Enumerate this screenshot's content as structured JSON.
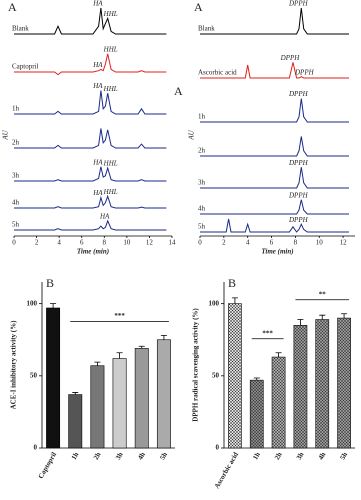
{
  "chart_data": [
    {
      "type": "line",
      "panel_label": "A",
      "annotations": [
        "A"
      ],
      "x_label": "Time (min)",
      "y_label": "AU",
      "xlim": [
        0,
        14
      ],
      "xticks": [
        0,
        2,
        4,
        6,
        8,
        10,
        12,
        14
      ],
      "x": [
        0,
        3.6,
        3.9,
        4.2,
        7.0,
        7.5,
        7.7,
        7.9,
        8.1,
        8.3,
        8.6,
        9.0,
        11.0,
        11.3,
        11.6,
        13.5
      ],
      "series": [
        {
          "name": "Blank",
          "color": "#000000",
          "values": [
            0,
            0,
            0.3,
            0,
            0,
            0.3,
            1.0,
            0.2,
            0.4,
            0.6,
            0.1,
            0,
            0,
            0,
            0,
            0
          ],
          "peak_labels": [
            {
              "label": "HA",
              "x": 7.7
            },
            {
              "label": "HHL",
              "x": 8.3
            }
          ]
        },
        {
          "name": "Captopril",
          "color": "#e0201a",
          "values": [
            0,
            0,
            -0.1,
            0,
            0,
            0.05,
            0.1,
            0.05,
            0.3,
            0.7,
            0.1,
            0,
            0,
            0.05,
            0,
            0
          ],
          "peak_labels": [
            {
              "label": "HA",
              "x": 7.7
            },
            {
              "label": "HHL",
              "x": 8.3
            }
          ]
        },
        {
          "name": "1h",
          "color": "#1a2a8a",
          "values": [
            0,
            0,
            0.1,
            0,
            0,
            0.1,
            0.9,
            0.2,
            0.3,
            0.8,
            0.1,
            0,
            0,
            0.2,
            0,
            0
          ],
          "peak_labels": [
            {
              "label": "HA",
              "x": 7.7
            },
            {
              "label": "HHL",
              "x": 8.3
            }
          ]
        },
        {
          "name": "2h",
          "color": "#1a2a8a",
          "values": [
            0,
            0,
            0.1,
            0,
            0,
            0.1,
            0.75,
            0.2,
            0.3,
            0.7,
            0.1,
            0,
            0,
            0.15,
            0,
            0
          ],
          "peak_labels": []
        },
        {
          "name": "3h",
          "color": "#1a2a8a",
          "values": [
            0,
            0,
            0.05,
            0,
            0,
            0.1,
            0.55,
            0.15,
            0.2,
            0.5,
            0.05,
            0,
            0,
            0.05,
            0,
            0
          ],
          "peak_labels": [
            {
              "label": "HA",
              "x": 7.7
            },
            {
              "label": "HHL",
              "x": 8.3
            }
          ]
        },
        {
          "name": "4h",
          "color": "#1a2a8a",
          "values": [
            0,
            0,
            0.05,
            0,
            0,
            0.05,
            0.4,
            0.1,
            0.2,
            0.45,
            0.05,
            0,
            0,
            0.03,
            0,
            0
          ],
          "peak_labels": [
            {
              "label": "HA",
              "x": 7.7
            },
            {
              "label": "HHL",
              "x": 8.3
            }
          ]
        },
        {
          "name": "5h",
          "color": "#1a2a8a",
          "values": [
            0,
            0,
            0.05,
            0,
            0,
            0.05,
            0.15,
            0.05,
            0.1,
            0.35,
            0.05,
            0,
            0,
            0,
            0,
            0
          ],
          "peak_labels": [
            {
              "label": "HA",
              "x": 8.3
            }
          ]
        }
      ]
    },
    {
      "type": "line",
      "panel_label": "A",
      "annotations": [],
      "x_label": "Time (min)",
      "y_label": "AU",
      "xlim": [
        0,
        13
      ],
      "xticks": [
        0,
        2,
        4,
        6,
        8,
        10,
        12
      ],
      "x": [
        0,
        2.2,
        2.4,
        2.6,
        3.8,
        4.0,
        4.2,
        7.5,
        7.8,
        8.1,
        8.3,
        8.5,
        8.7,
        9.0,
        12.5
      ],
      "series": [
        {
          "name": "Blank",
          "color": "#000000",
          "values": [
            0,
            0,
            0,
            0,
            0,
            0,
            0,
            0,
            0,
            0,
            0.2,
            1.0,
            0.2,
            0,
            0
          ],
          "peak_labels": [
            {
              "label": "DPPH",
              "x": 8.5
            }
          ]
        },
        {
          "name": "Ascorbic acid",
          "color": "#e0201a",
          "values": [
            0,
            0,
            0,
            0,
            0,
            0.5,
            0,
            0,
            0.6,
            0,
            0,
            0.05,
            0,
            0,
            0
          ],
          "peak_labels": [
            {
              "label": "DPPH",
              "x": 7.8
            },
            {
              "label": "DPPH",
              "x": 8.5
            }
          ]
        },
        {
          "name": "1h",
          "color": "#1a2a8a",
          "values": [
            0,
            0,
            0,
            0,
            0,
            0,
            0,
            0,
            0,
            0,
            0.2,
            0.9,
            0.2,
            0,
            0
          ],
          "peak_labels": [
            {
              "label": "DPPH",
              "x": 8.5
            }
          ]
        },
        {
          "name": "2h",
          "color": "#1a2a8a",
          "values": [
            0,
            0,
            0,
            0,
            0,
            0,
            0,
            0,
            0,
            0,
            0.2,
            0.75,
            0.2,
            0,
            0
          ],
          "peak_labels": []
        },
        {
          "name": "3h",
          "color": "#1a2a8a",
          "values": [
            0,
            0,
            0,
            0,
            0,
            0,
            0,
            0,
            0,
            0,
            0.2,
            0.8,
            0.2,
            0,
            0
          ],
          "peak_labels": [
            {
              "label": "DPPH",
              "x": 8.5
            }
          ]
        },
        {
          "name": "4h",
          "color": "#1a2a8a",
          "values": [
            0,
            0,
            0,
            0,
            0,
            0,
            0,
            0,
            0,
            0,
            0.15,
            0.55,
            0.15,
            0,
            0
          ],
          "peak_labels": [
            {
              "label": "DPPH",
              "x": 8.5
            }
          ]
        },
        {
          "name": "5h",
          "color": "#1a2a8a",
          "values": [
            0,
            0,
            0.5,
            0,
            0,
            0.3,
            0,
            0,
            0.2,
            0,
            0.1,
            0.3,
            0.1,
            0,
            0
          ],
          "peak_labels": [
            {
              "label": "DPPH",
              "x": 8.5
            }
          ]
        }
      ]
    },
    {
      "type": "bar",
      "panel_label": "B",
      "y_label": "ACE-I inhibitory activity (%)",
      "categories": [
        "Captopril",
        "1h",
        "2h",
        "3h",
        "4h",
        "5h"
      ],
      "values": [
        97,
        37,
        57,
        62,
        69,
        75
      ],
      "errors": [
        3,
        1.5,
        2.5,
        4,
        1.5,
        3
      ],
      "colors": [
        "#111111",
        "#555555",
        "#777777",
        "#cccccc",
        "#999999",
        "#aaaaaa"
      ],
      "hatched": false,
      "ylim": [
        0,
        115
      ],
      "yticks": [
        0,
        50,
        100
      ],
      "annotations": [
        {
          "text": "***",
          "from": "1h",
          "to": "5h"
        }
      ]
    },
    {
      "type": "bar",
      "panel_label": "B",
      "y_label": "DPPH radical scavenging activity (%)",
      "categories": [
        "Ascorbic acid",
        "1h",
        "2h",
        "3h",
        "4h",
        "5h"
      ],
      "values": [
        100,
        47,
        63,
        85,
        89,
        90
      ],
      "errors": [
        4,
        1.5,
        3,
        4,
        3,
        3
      ],
      "colors": [
        "#dddddd",
        "#888888",
        "#aaaaaa",
        "#999999",
        "#999999",
        "#999999"
      ],
      "hatched": true,
      "ylim": [
        0,
        115
      ],
      "yticks": [
        0,
        50,
        100
      ],
      "annotations": [
        {
          "text": "***",
          "from": "1h",
          "to": "2h"
        },
        {
          "text": "**",
          "from": "3h",
          "to": "5h"
        }
      ]
    }
  ]
}
